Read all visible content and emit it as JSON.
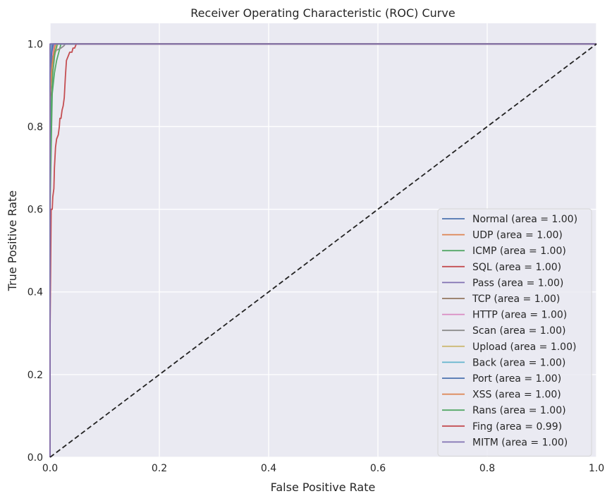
{
  "chart_data": {
    "type": "line",
    "title": "Receiver Operating Characteristic (ROC) Curve",
    "xlabel": "False Positive Rate",
    "ylabel": "True Positive Rate",
    "xlim": [
      0,
      1
    ],
    "ylim": [
      0,
      1.05
    ],
    "xticks": [
      0.0,
      0.2,
      0.4,
      0.6,
      0.8,
      1.0
    ],
    "xtick_labels": [
      "0.0",
      "0.2",
      "0.4",
      "0.6",
      "0.8",
      "1.0"
    ],
    "yticks": [
      0.0,
      0.2,
      0.4,
      0.6,
      0.8,
      1.0
    ],
    "ytick_labels": [
      "0.0",
      "0.2",
      "0.4",
      "0.6",
      "0.8",
      "1.0"
    ],
    "grid": true,
    "legend_position": "lower-right",
    "background": "#eaeaf2",
    "reference_line": {
      "x": [
        0,
        1
      ],
      "y": [
        0,
        1
      ],
      "style": "dashed",
      "color": "#222222"
    },
    "series": [
      {
        "name": "Normal (area = 1.00)",
        "color": "#4c72b0",
        "x": [
          0,
          0,
          0.002,
          0.005,
          1
        ],
        "y": [
          0,
          0.95,
          0.99,
          1.0,
          1.0
        ]
      },
      {
        "name": "UDP (area = 1.00)",
        "color": "#dd8452",
        "x": [
          0,
          0,
          0.003,
          0.006,
          0.01,
          1
        ],
        "y": [
          0,
          0.9,
          0.96,
          0.99,
          1.0,
          1.0
        ]
      },
      {
        "name": "ICMP (area = 1.00)",
        "color": "#55a868",
        "x": [
          0,
          0,
          0.002,
          0.004,
          0.008,
          0.012,
          0.016,
          0.02,
          1
        ],
        "y": [
          0,
          0.6,
          0.75,
          0.88,
          0.93,
          0.96,
          0.98,
          1.0,
          1.0
        ]
      },
      {
        "name": "SQL (area = 1.00)",
        "color": "#c44e52",
        "x": [
          0,
          0,
          0.003,
          0.006,
          0.01,
          1
        ],
        "y": [
          0,
          0.85,
          0.95,
          0.99,
          1.0,
          1.0
        ]
      },
      {
        "name": "Pass (area = 1.00)",
        "color": "#8172b3",
        "x": [
          0,
          0,
          0.002,
          0.004,
          1
        ],
        "y": [
          0,
          0.97,
          0.99,
          1.0,
          1.0
        ]
      },
      {
        "name": "TCP (area = 1.00)",
        "color": "#937860",
        "x": [
          0,
          0,
          0.001,
          1
        ],
        "y": [
          0,
          0.99,
          1.0,
          1.0
        ]
      },
      {
        "name": "HTTP (area = 1.00)",
        "color": "#da8bc3",
        "x": [
          0,
          0,
          0.003,
          0.006,
          0.008,
          1
        ],
        "y": [
          0,
          0.9,
          0.96,
          0.99,
          1.0,
          1.0
        ]
      },
      {
        "name": "Scan (area = 1.00)",
        "color": "#8c8c8c",
        "x": [
          0,
          0,
          0.005,
          0.012,
          0.02,
          0.025,
          0.028,
          1
        ],
        "y": [
          0,
          0.92,
          0.97,
          0.985,
          0.99,
          0.995,
          1.0,
          1.0
        ]
      },
      {
        "name": "Upload (area = 1.00)",
        "color": "#ccb974",
        "x": [
          0,
          0,
          0.004,
          0.008,
          0.012,
          0.014,
          1
        ],
        "y": [
          0,
          0.88,
          0.95,
          0.97,
          0.99,
          1.0,
          1.0
        ]
      },
      {
        "name": "Back (area = 1.00)",
        "color": "#64b5cd",
        "x": [
          0,
          0,
          0.002,
          1
        ],
        "y": [
          0,
          0.97,
          1.0,
          1.0
        ]
      },
      {
        "name": "Port (area = 1.00)",
        "color": "#4c72b0",
        "x": [
          0,
          0,
          0.003,
          0.006,
          1
        ],
        "y": [
          0,
          0.93,
          0.98,
          1.0,
          1.0
        ]
      },
      {
        "name": "XSS (area = 1.00)",
        "color": "#dd8452",
        "x": [
          0,
          0,
          0.004,
          0.008,
          0.01,
          1
        ],
        "y": [
          0,
          0.88,
          0.95,
          0.99,
          1.0,
          1.0
        ]
      },
      {
        "name": "Rans (area = 1.00)",
        "color": "#55a868",
        "x": [
          0,
          0,
          0.002,
          0.005,
          0.009,
          0.013,
          1
        ],
        "y": [
          0,
          0.7,
          0.85,
          0.93,
          0.98,
          1.0,
          1.0
        ]
      },
      {
        "name": "Fing (area = 0.99)",
        "color": "#c44e52",
        "x": [
          0,
          0,
          0.002,
          0.004,
          0.005,
          0.007,
          0.008,
          0.01,
          0.012,
          0.015,
          0.017,
          0.018,
          0.02,
          0.022,
          0.024,
          0.026,
          0.028,
          0.03,
          0.033,
          0.036,
          0.04,
          0.042,
          0.045,
          0.048,
          1
        ],
        "y": [
          0,
          0.3,
          0.6,
          0.6,
          0.63,
          0.65,
          0.7,
          0.75,
          0.77,
          0.78,
          0.8,
          0.82,
          0.82,
          0.84,
          0.85,
          0.87,
          0.92,
          0.96,
          0.97,
          0.98,
          0.98,
          0.99,
          0.99,
          1.0,
          1.0
        ]
      },
      {
        "name": "MITM (area = 1.00)",
        "color": "#8172b3",
        "x": [
          0,
          0,
          1
        ],
        "y": [
          0,
          1.0,
          1.0
        ]
      }
    ]
  }
}
